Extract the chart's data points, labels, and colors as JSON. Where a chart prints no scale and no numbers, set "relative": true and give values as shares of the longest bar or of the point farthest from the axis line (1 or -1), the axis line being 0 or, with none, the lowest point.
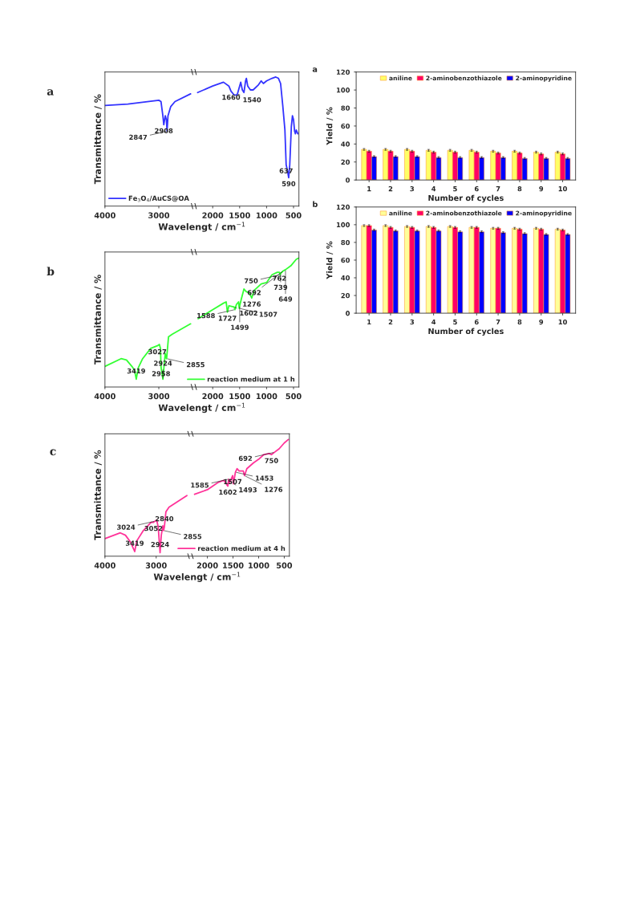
{
  "chart_data": [
    {
      "type": "line",
      "title": "a",
      "xlabel": "Wavelengt / cm$^{−1}$",
      "ylabel": "Transmittance / %",
      "relative": true,
      "xlim": [
        4000,
        400
      ],
      "xticks": [
        4000,
        3000,
        2000,
        1500,
        1000,
        500
      ],
      "legend": "bottom left",
      "series": [
        {
          "name": "Fe$_{3}$O$_{4}$/AuCS@OA",
          "color": "#3333ff",
          "x": [
            4000,
            3575,
            3000,
            2960,
            2925,
            2908,
            2880,
            2860,
            2847,
            2830,
            2780,
            2700,
            2410,
            2350,
            2280,
            2000,
            1800,
            1700,
            1660,
            1600,
            1560,
            1540,
            1500,
            1480,
            1450,
            1420,
            1390,
            1375,
            1350,
            1300,
            1250,
            1150,
            1100,
            1060,
            1000,
            900,
            830,
            780,
            740,
            700,
            660,
            637,
            610,
            590,
            570,
            540,
            520,
            500,
            480,
            465,
            450,
            420
          ],
          "values": [
            0.78,
            0.79,
            0.82,
            0.81,
            0.7,
            0.63,
            0.7,
            0.67,
            0.58,
            0.7,
            0.77,
            0.81,
            0.87,
            null,
            0.88,
            0.93,
            0.96,
            0.93,
            0.89,
            0.86,
            0.86,
            0.87,
            0.93,
            0.96,
            0.9,
            0.88,
            0.97,
            0.99,
            0.93,
            0.9,
            0.9,
            0.94,
            0.97,
            0.95,
            0.97,
            0.99,
            1.0,
            0.99,
            0.95,
            0.78,
            0.59,
            0.32,
            0.27,
            0.22,
            0.32,
            0.62,
            0.7,
            0.67,
            0.58,
            0.56,
            0.59,
            0.56
          ]
        }
      ],
      "annotations": [
        {
          "text": "2908",
          "x": 2908,
          "y": 0.63
        },
        {
          "text": "2847",
          "x": 2847,
          "y": 0.58
        },
        {
          "text": "1660",
          "x": 1660,
          "y": 0.89
        },
        {
          "text": "1540",
          "x": 1540,
          "y": 0.87
        },
        {
          "text": "637",
          "x": 637,
          "y": 0.32
        },
        {
          "text": "590",
          "x": 590,
          "y": 0.22
        }
      ]
    },
    {
      "type": "line",
      "title": "b",
      "xlabel": "Wavelengt / cm$^{−1}$",
      "ylabel": "Transmittance / %",
      "relative": true,
      "xlim": [
        4000,
        400
      ],
      "xticks": [
        4000,
        3000,
        2000,
        1500,
        1000,
        500
      ],
      "legend": "bottom right",
      "series": [
        {
          "name": "reaction medium at 1 h",
          "color": "#33ff33",
          "x": [
            4000,
            3700,
            3600,
            3500,
            3450,
            3419,
            3380,
            3300,
            3150,
            3027,
            2990,
            2970,
            2958,
            2924,
            2900,
            2880,
            2870,
            2855,
            2820,
            2750,
            2410,
            2350,
            2270,
            2000,
            1800,
            1750,
            1727,
            1700,
            1602,
            1588,
            1560,
            1520,
            1507,
            1499,
            1470,
            1420,
            1380,
            1320,
            1276,
            1230,
            1100,
            1000,
            900,
            800,
            762,
            750,
            739,
            692,
            649,
            550,
            450,
            400
          ],
          "values": [
            0.16,
            0.22,
            0.21,
            0.16,
            0.13,
            0.06,
            0.15,
            0.22,
            0.3,
            0.32,
            0.33,
            0.3,
            0.15,
            0.06,
            0.18,
            0.26,
            0.23,
            0.22,
            0.39,
            0.41,
            0.49,
            null,
            0.53,
            0.6,
            0.65,
            0.66,
            0.58,
            0.63,
            0.62,
            0.6,
            0.64,
            0.66,
            0.61,
            0.63,
            0.68,
            0.76,
            0.74,
            0.73,
            0.69,
            0.75,
            0.8,
            0.81,
            0.87,
            0.89,
            0.89,
            0.87,
            0.88,
            0.9,
            0.91,
            0.94,
            0.99,
            1.0
          ]
        }
      ],
      "annotations": [
        {
          "text": "3027",
          "x": 3027,
          "y": 0.32
        },
        {
          "text": "3419",
          "x": 3419,
          "y": 0.06
        },
        {
          "text": "2958",
          "x": 2958,
          "y": 0.15
        },
        {
          "text": "2924",
          "x": 2924,
          "y": 0.06
        },
        {
          "text": "2855",
          "x": 2855,
          "y": 0.22
        },
        {
          "text": "1727",
          "x": 1727,
          "y": 0.58
        },
        {
          "text": "1602",
          "x": 1602,
          "y": 0.62
        },
        {
          "text": "1588",
          "x": 1588,
          "y": 0.6
        },
        {
          "text": "1507",
          "x": 1507,
          "y": 0.61
        },
        {
          "text": "1499",
          "x": 1499,
          "y": 0.63
        },
        {
          "text": "1276",
          "x": 1276,
          "y": 0.69
        },
        {
          "text": "762",
          "x": 762,
          "y": 0.89
        },
        {
          "text": "750",
          "x": 750,
          "y": 0.87
        },
        {
          "text": "739",
          "x": 739,
          "y": 0.88
        },
        {
          "text": "692",
          "x": 692,
          "y": 0.9
        },
        {
          "text": "649",
          "x": 649,
          "y": 0.91
        }
      ]
    },
    {
      "type": "line",
      "title": "c",
      "xlabel": "Wavelengt / cm$^{−1}$",
      "ylabel": "Transmittance / %",
      "relative": true,
      "xlim": [
        4000,
        400
      ],
      "xticks": [
        4000,
        3000,
        2000,
        1500,
        1000,
        500
      ],
      "legend": "bottom right",
      "series": [
        {
          "name": "reaction medium at 4 h",
          "color": "#ff3399",
          "x": [
            4000,
            3700,
            3600,
            3500,
            3419,
            3380,
            3250,
            3100,
            3052,
            3024,
            2990,
            2960,
            2924,
            2900,
            2870,
            2855,
            2840,
            2810,
            2750,
            2400,
            2330,
            2250,
            2000,
            1800,
            1680,
            1602,
            1585,
            1565,
            1507,
            1493,
            1453,
            1420,
            1380,
            1300,
            1276,
            1230,
            1100,
            1000,
            900,
            800,
            750,
            692,
            600,
            500,
            420
          ],
          "values": [
            0.15,
            0.2,
            0.18,
            0.12,
            0.04,
            0.13,
            0.22,
            0.29,
            0.29,
            0.3,
            0.31,
            0.25,
            0.03,
            0.18,
            0.26,
            0.22,
            0.25,
            0.38,
            0.42,
            0.52,
            null,
            0.53,
            0.57,
            0.63,
            0.65,
            0.6,
            0.66,
            0.63,
            0.69,
            0.62,
            0.72,
            0.75,
            0.73,
            0.73,
            0.69,
            0.75,
            0.8,
            0.83,
            0.87,
            0.88,
            0.87,
            0.89,
            0.92,
            0.97,
            1.0
          ]
        }
      ],
      "annotations": [
        {
          "text": "3419",
          "x": 3419,
          "y": 0.04
        },
        {
          "text": "3052",
          "x": 3052,
          "y": 0.29
        },
        {
          "text": "3024",
          "x": 3024,
          "y": 0.3
        },
        {
          "text": "2924",
          "x": 2924,
          "y": 0.03
        },
        {
          "text": "2855",
          "x": 2855,
          "y": 0.22
        },
        {
          "text": "2840",
          "x": 2840,
          "y": 0.25
        },
        {
          "text": "1602",
          "x": 1602,
          "y": 0.6
        },
        {
          "text": "1585",
          "x": 1585,
          "y": 0.66
        },
        {
          "text": "1507",
          "x": 1507,
          "y": 0.69
        },
        {
          "text": "1493",
          "x": 1493,
          "y": 0.62
        },
        {
          "text": "1453",
          "x": 1453,
          "y": 0.72
        },
        {
          "text": "1276",
          "x": 1276,
          "y": 0.69
        },
        {
          "text": "750",
          "x": 750,
          "y": 0.87
        },
        {
          "text": "692",
          "x": 692,
          "y": 0.89
        }
      ]
    },
    {
      "type": "bar",
      "title": "a",
      "xlabel": "Number of cycles",
      "ylabel": "Yield / %",
      "categories": [
        "1",
        "2",
        "3",
        "4",
        "5",
        "6",
        "7",
        "8",
        "9",
        "10"
      ],
      "ylim": [
        0,
        120
      ],
      "yticks": [
        0,
        20,
        40,
        60,
        80,
        100,
        120
      ],
      "legend": "top right",
      "series": [
        {
          "name": "aniline",
          "color": "#ffff66",
          "values": [
            34,
            34,
            34,
            33,
            33,
            33,
            32,
            32,
            31,
            31
          ],
          "errors": [
            1,
            1,
            1,
            1,
            1,
            1,
            1,
            1,
            1,
            1
          ]
        },
        {
          "name": "2-aminobenzothiazole",
          "color": "#ff0066",
          "values": [
            32,
            32,
            32,
            31,
            31,
            31,
            30,
            30,
            29,
            29
          ],
          "errors": [
            1,
            1,
            1,
            1,
            1,
            1,
            1,
            1,
            1,
            1
          ]
        },
        {
          "name": "2-aminopyridine",
          "color": "#0000ff",
          "values": [
            26,
            26,
            26,
            25,
            25,
            25,
            25,
            24,
            24,
            24
          ],
          "errors": [
            1,
            1,
            1,
            1,
            1,
            1,
            1,
            1,
            1,
            1
          ]
        }
      ]
    },
    {
      "type": "bar",
      "title": "b",
      "xlabel": "Number of cycles",
      "ylabel": "Yield / %",
      "categories": [
        "1",
        "2",
        "3",
        "4",
        "5",
        "6",
        "7",
        "8",
        "9",
        "10"
      ],
      "ylim": [
        0,
        120
      ],
      "yticks": [
        0,
        20,
        40,
        60,
        80,
        100,
        120
      ],
      "legend": "top right",
      "series": [
        {
          "name": "aniline",
          "color": "#ffff99",
          "values": [
            99,
            99,
            98,
            98,
            98,
            97,
            96,
            96,
            96,
            95
          ],
          "errors": [
            1,
            1,
            1,
            1,
            1,
            1,
            1,
            1,
            1,
            1
          ]
        },
        {
          "name": "2-aminobenzothiazole",
          "color": "#ff0066",
          "values": [
            99,
            97,
            97,
            97,
            97,
            97,
            96,
            95,
            95,
            94
          ],
          "errors": [
            1,
            1,
            1,
            1,
            1,
            1,
            1,
            1,
            1,
            1
          ]
        },
        {
          "name": "2-aminopyridine",
          "color": "#0000ff",
          "values": [
            94,
            93,
            93,
            93,
            92,
            92,
            91,
            90,
            89,
            89
          ],
          "errors": [
            1,
            1,
            1,
            1,
            1,
            1,
            1,
            1,
            1,
            1
          ]
        }
      ]
    }
  ]
}
